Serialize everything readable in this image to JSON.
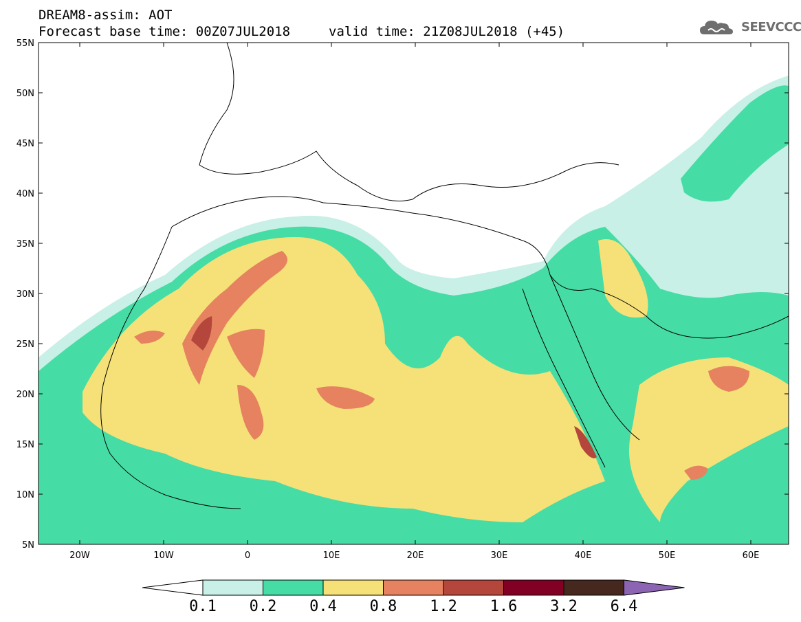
{
  "title": {
    "line1": "DREAM8-assim: AOT",
    "base_time": "Forecast base time: 00Z07JUL2018",
    "valid_time": "valid time: 21Z08JUL2018 (+45)"
  },
  "logo": {
    "text": "SEEVCCC",
    "icon": "cloud-icon"
  },
  "map": {
    "lat_labels": [
      "55N",
      "50N",
      "45N",
      "40N",
      "35N",
      "30N",
      "25N",
      "20N",
      "15N",
      "10N",
      "5N"
    ],
    "lon_labels": [
      "20W",
      "10W",
      "0",
      "10E",
      "20E",
      "30E",
      "40E",
      "50E",
      "60E"
    ]
  },
  "colorbar": {
    "labels": [
      "0.1",
      "0.2",
      "0.4",
      "0.8",
      "1.2",
      "1.6",
      "3.2",
      "6.4"
    ],
    "colors": [
      "#c8f0e6",
      "#46dca5",
      "#f5e178",
      "#e6825f",
      "#b4463c",
      "#820023",
      "#46281e",
      "#8c64b4"
    ],
    "left_arrow_color": "#ffffff"
  }
}
